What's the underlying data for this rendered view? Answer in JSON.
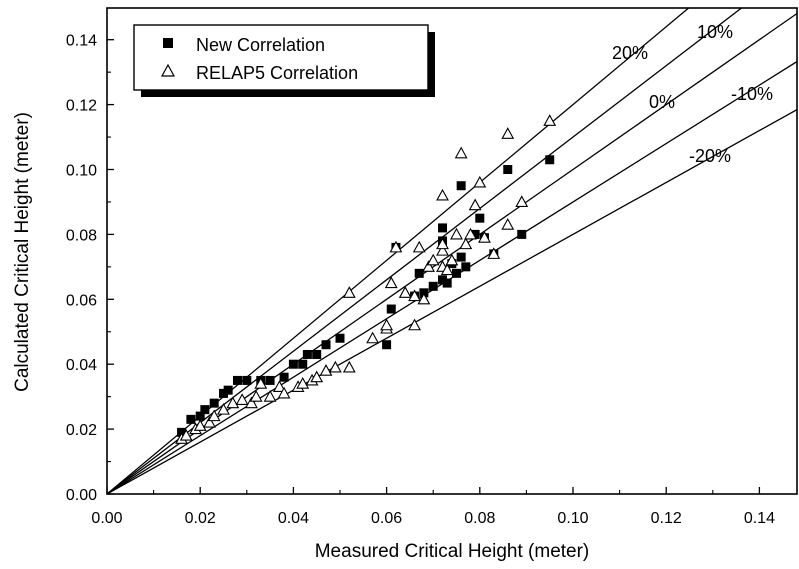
{
  "chart_data": {
    "type": "scatter",
    "xlabel": "Measured Critical Height (meter)",
    "ylabel": "Calculated Critical Height (meter)",
    "xlim": [
      0,
      0.15
    ],
    "ylim": [
      0,
      0.15
    ],
    "x_ticks": [
      "0.00",
      "0.02",
      "0.04",
      "0.06",
      "0.08",
      "0.10",
      "0.12",
      "0.14"
    ],
    "y_ticks": [
      "0.00",
      "0.02",
      "0.04",
      "0.06",
      "0.08",
      "0.10",
      "0.12",
      "0.14"
    ],
    "grid": false,
    "legend_position": "top-left",
    "reference_lines": [
      {
        "label": "20%",
        "slope": 1.2
      },
      {
        "label": "10%",
        "slope": 1.1
      },
      {
        "label": "0%",
        "slope": 1.0
      },
      {
        "label": "-10%",
        "slope": 0.9
      },
      {
        "label": "-20%",
        "slope": 0.8
      }
    ],
    "series": [
      {
        "name": "New Correlation",
        "marker": "filled-square",
        "color": "#000000",
        "points": [
          [
            0.016,
            0.019
          ],
          [
            0.018,
            0.023
          ],
          [
            0.02,
            0.024
          ],
          [
            0.021,
            0.026
          ],
          [
            0.023,
            0.028
          ],
          [
            0.025,
            0.031
          ],
          [
            0.026,
            0.032
          ],
          [
            0.028,
            0.035
          ],
          [
            0.03,
            0.035
          ],
          [
            0.033,
            0.035
          ],
          [
            0.035,
            0.035
          ],
          [
            0.038,
            0.036
          ],
          [
            0.04,
            0.04
          ],
          [
            0.042,
            0.04
          ],
          [
            0.043,
            0.043
          ],
          [
            0.045,
            0.043
          ],
          [
            0.047,
            0.046
          ],
          [
            0.05,
            0.048
          ],
          [
            0.06,
            0.046
          ],
          [
            0.061,
            0.057
          ],
          [
            0.062,
            0.076
          ],
          [
            0.066,
            0.061
          ],
          [
            0.068,
            0.062
          ],
          [
            0.067,
            0.068
          ],
          [
            0.07,
            0.064
          ],
          [
            0.072,
            0.066
          ],
          [
            0.072,
            0.082
          ],
          [
            0.072,
            0.078
          ],
          [
            0.073,
            0.065
          ],
          [
            0.074,
            0.071
          ],
          [
            0.075,
            0.068
          ],
          [
            0.076,
            0.073
          ],
          [
            0.076,
            0.095
          ],
          [
            0.077,
            0.07
          ],
          [
            0.079,
            0.08
          ],
          [
            0.08,
            0.085
          ],
          [
            0.081,
            0.079
          ],
          [
            0.083,
            0.074
          ],
          [
            0.086,
            0.1
          ],
          [
            0.089,
            0.08
          ],
          [
            0.095,
            0.103
          ]
        ]
      },
      {
        "name": "RELAP5 Correlation",
        "marker": "open-triangle",
        "color": "#000000",
        "points": [
          [
            0.016,
            0.017
          ],
          [
            0.017,
            0.018
          ],
          [
            0.019,
            0.02
          ],
          [
            0.02,
            0.021
          ],
          [
            0.022,
            0.022
          ],
          [
            0.023,
            0.024
          ],
          [
            0.025,
            0.026
          ],
          [
            0.027,
            0.028
          ],
          [
            0.029,
            0.029
          ],
          [
            0.031,
            0.028
          ],
          [
            0.032,
            0.03
          ],
          [
            0.033,
            0.034
          ],
          [
            0.035,
            0.03
          ],
          [
            0.037,
            0.033
          ],
          [
            0.038,
            0.031
          ],
          [
            0.041,
            0.033
          ],
          [
            0.042,
            0.034
          ],
          [
            0.044,
            0.035
          ],
          [
            0.045,
            0.036
          ],
          [
            0.047,
            0.038
          ],
          [
            0.049,
            0.039
          ],
          [
            0.052,
            0.039
          ],
          [
            0.052,
            0.062
          ],
          [
            0.057,
            0.048
          ],
          [
            0.06,
            0.051
          ],
          [
            0.06,
            0.052
          ],
          [
            0.061,
            0.065
          ],
          [
            0.062,
            0.076
          ],
          [
            0.064,
            0.062
          ],
          [
            0.066,
            0.052
          ],
          [
            0.066,
            0.061
          ],
          [
            0.067,
            0.076
          ],
          [
            0.068,
            0.06
          ],
          [
            0.069,
            0.07
          ],
          [
            0.07,
            0.072
          ],
          [
            0.072,
            0.07
          ],
          [
            0.072,
            0.075
          ],
          [
            0.072,
            0.077
          ],
          [
            0.072,
            0.092
          ],
          [
            0.073,
            0.069
          ],
          [
            0.074,
            0.072
          ],
          [
            0.075,
            0.08
          ],
          [
            0.076,
            0.105
          ],
          [
            0.077,
            0.077
          ],
          [
            0.078,
            0.08
          ],
          [
            0.079,
            0.089
          ],
          [
            0.08,
            0.096
          ],
          [
            0.081,
            0.079
          ],
          [
            0.083,
            0.074
          ],
          [
            0.086,
            0.083
          ],
          [
            0.086,
            0.111
          ],
          [
            0.089,
            0.09
          ],
          [
            0.095,
            0.115
          ]
        ]
      }
    ]
  }
}
